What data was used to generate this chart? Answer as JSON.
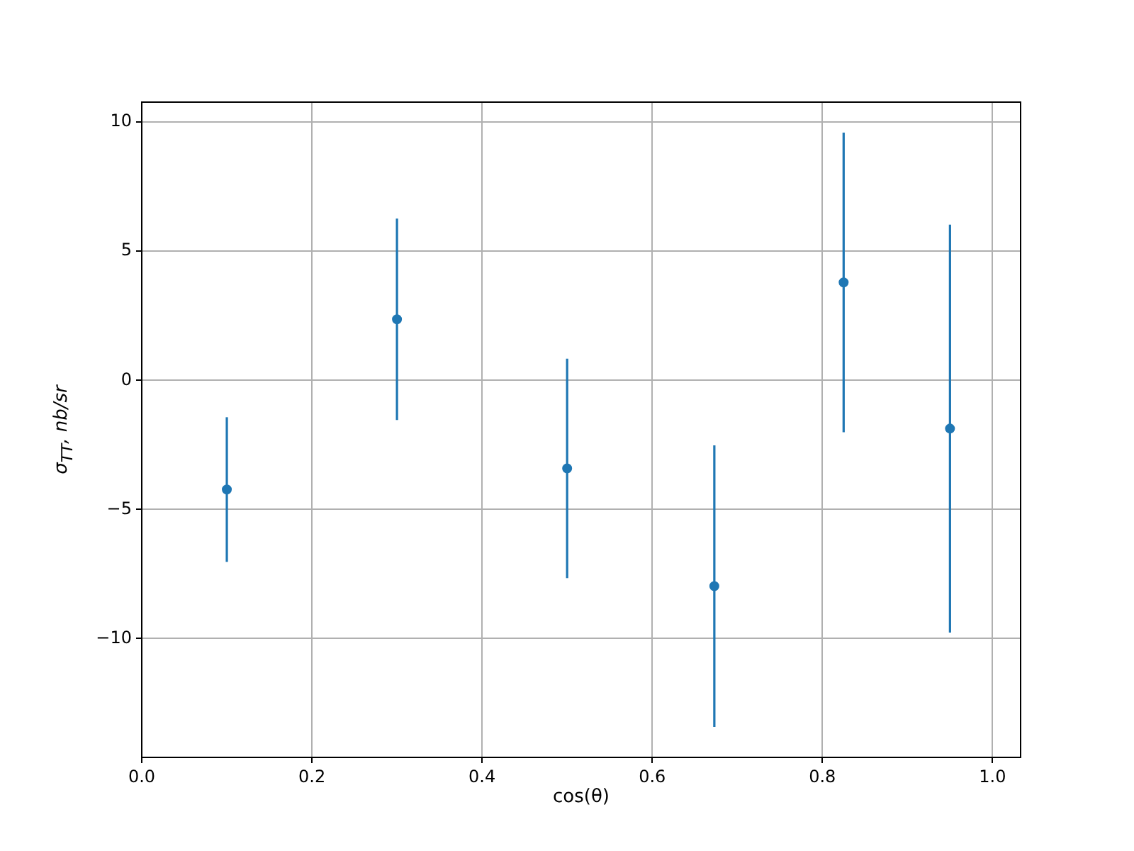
{
  "chart_data": {
    "type": "scatter",
    "xlabel": "cos(θ)",
    "ylabel": "σ$_{TT}$, nb/sr",
    "x": [
      0.1,
      0.3,
      0.5,
      0.673,
      0.825,
      0.95
    ],
    "series": [
      {
        "color": "#1f77b4",
        "values": [
          -4.23,
          2.36,
          -3.41,
          -7.97,
          3.79,
          -1.87
        ],
        "errors": [
          2.8,
          3.9,
          4.25,
          5.45,
          5.8,
          7.9
        ]
      }
    ],
    "xlim": [
      0,
      1.033
    ],
    "xticks": [
      {
        "value": 0,
        "label": "0.0"
      },
      {
        "value": 0.2,
        "label": "0.2"
      },
      {
        "value": 0.4,
        "label": "0.4"
      },
      {
        "value": 0.6,
        "label": "0.6"
      },
      {
        "value": 0.8,
        "label": "0.8"
      },
      {
        "value": 1,
        "label": "1.0"
      }
    ],
    "ylim": [
      -14.6,
      10.77
    ],
    "yticks": [
      {
        "value": -10,
        "label": "−10"
      },
      {
        "value": -5,
        "label": "−5"
      },
      0,
      5,
      10
    ],
    "grid": true,
    "legend": false,
    "marker": "circle"
  }
}
